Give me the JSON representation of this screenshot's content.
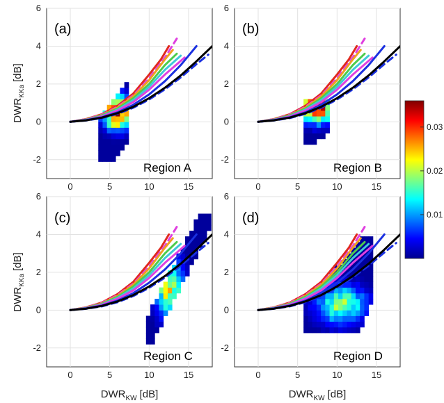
{
  "chart_data": {
    "type": "heatmap",
    "layout": "2x2 panels",
    "xlabel": "DWR",
    "xlabel_subscript": "KW",
    "xlabel_unit": "[dB]",
    "ylabel": "DWR",
    "ylabel_subscript": "KKa",
    "ylabel_unit": "[dB]",
    "xlim": [
      -3,
      18
    ],
    "ylim": [
      -3,
      6
    ],
    "xticks": [
      0,
      5,
      10,
      15
    ],
    "yticks": [
      -2,
      0,
      2,
      4,
      6
    ],
    "grid": true,
    "colorbar": {
      "range": [
        0,
        0.036
      ],
      "ticks": [
        0.01,
        0.02,
        0.03
      ],
      "tick_labels": [
        "0.01",
        "0.02",
        "0.03"
      ],
      "colormap": "jet"
    },
    "curves": [
      {
        "color": "#e0281e",
        "style": "solid",
        "x": [
          0,
          2,
          4,
          6,
          8,
          10,
          11.5,
          12.5
        ],
        "y": [
          0,
          0.15,
          0.4,
          0.85,
          1.5,
          2.5,
          3.3,
          4.0
        ]
      },
      {
        "color": "#e040e0",
        "style": "dashed",
        "x": [
          0,
          2,
          4,
          6,
          8,
          10,
          12,
          13.5
        ],
        "y": [
          0,
          0.14,
          0.38,
          0.8,
          1.4,
          2.3,
          3.4,
          4.4
        ]
      },
      {
        "color": "#f0a020",
        "style": "solid",
        "x": [
          0,
          2,
          4,
          6,
          8,
          10,
          12,
          13
        ],
        "y": [
          0,
          0.13,
          0.35,
          0.75,
          1.35,
          2.2,
          3.3,
          3.8
        ]
      },
      {
        "color": "#4ccc4c",
        "style": "solid",
        "x": [
          0,
          2,
          4,
          6,
          8,
          10,
          12,
          13.5
        ],
        "y": [
          0,
          0.12,
          0.33,
          0.7,
          1.25,
          2.0,
          3.0,
          3.6
        ]
      },
      {
        "color": "#40c8d8",
        "style": "solid",
        "x": [
          0,
          2,
          4,
          6,
          8,
          10,
          12,
          14
        ],
        "y": [
          0,
          0.11,
          0.3,
          0.65,
          1.15,
          1.85,
          2.75,
          3.5
        ]
      },
      {
        "color": "#e040e0",
        "style": "solid",
        "x": [
          0,
          2,
          4,
          6,
          8,
          10,
          12,
          14.5
        ],
        "y": [
          0,
          0.1,
          0.28,
          0.6,
          1.05,
          1.7,
          2.5,
          3.4
        ]
      },
      {
        "color": "#1a30e0",
        "style": "solid",
        "x": [
          0,
          2,
          4,
          6,
          8,
          10,
          12,
          14,
          16
        ],
        "y": [
          0,
          0.09,
          0.24,
          0.5,
          0.9,
          1.45,
          2.15,
          3.0,
          4.0
        ]
      },
      {
        "color": "#1a30e0",
        "style": "dashed",
        "x": [
          0,
          2,
          4,
          6,
          8,
          10,
          12,
          14,
          16,
          17.5
        ],
        "y": [
          0,
          0.07,
          0.2,
          0.42,
          0.75,
          1.18,
          1.72,
          2.35,
          3.05,
          3.55
        ]
      },
      {
        "color": "#000000",
        "style": "solid",
        "x": [
          0,
          2,
          4,
          6,
          8,
          10,
          12,
          14,
          16,
          18
        ],
        "y": [
          0,
          0.08,
          0.22,
          0.46,
          0.8,
          1.25,
          1.8,
          2.45,
          3.2,
          4.0
        ]
      }
    ],
    "panels": [
      {
        "tag": "(a)",
        "region": "Region A",
        "shape": {
          "xc": [
            5.6,
            5.6,
            6.8,
            6.5,
            6.8,
            7.2,
            7.2,
            6.6,
            5.5,
            4.6,
            4.1,
            4.0
          ],
          "yr": [
            [
              -2.1,
              -1.3
            ],
            [
              -1.8,
              1.1
            ],
            [
              -1.2,
              2.6
            ],
            [
              -0.8,
              2.6
            ],
            [
              -0.3,
              2.2
            ],
            [
              0.0,
              1.8
            ],
            [
              0.3,
              1.0
            ],
            [
              0.5,
              0.9
            ],
            [
              0.7,
              0.8
            ],
            [
              0.9,
              1.0
            ],
            [
              1.1,
              1.2
            ],
            [
              0,
              0
            ]
          ],
          "x0": 3.8,
          "dx": 0.55
        },
        "center": [
          6.0,
          0.5
        ],
        "peak": 0.034,
        "spread": [
          1.2,
          0.6
        ]
      },
      {
        "tag": "(b)",
        "region": "Region B",
        "center": [
          7.5,
          0.8
        ],
        "peak": 0.036,
        "spread": [
          1.4,
          0.55
        ]
      },
      {
        "tag": "(c)",
        "region": "Region C",
        "center": [
          12.5,
          1.2
        ],
        "peak": 0.022,
        "spread": [
          1.2,
          1.1
        ]
      },
      {
        "tag": "(d)",
        "region": "Region D",
        "center": [
          10.5,
          0.3
        ],
        "peak": 0.018,
        "spread": [
          2.2,
          0.7
        ]
      }
    ]
  }
}
